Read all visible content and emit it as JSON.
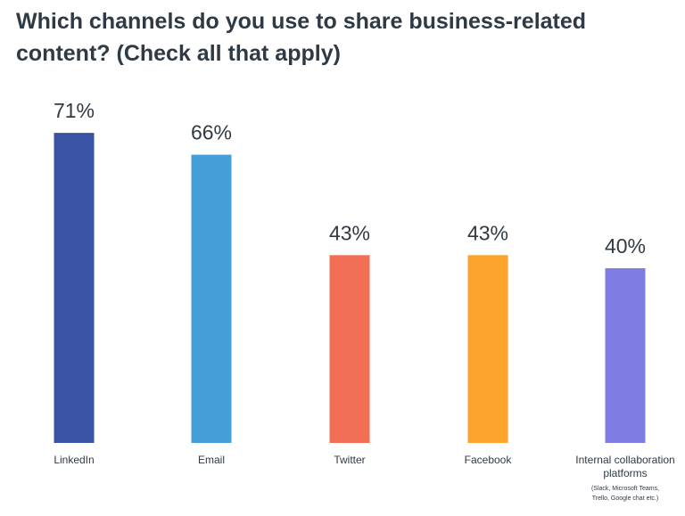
{
  "chart_data": {
    "type": "bar",
    "title": "Which channels do you use to share business-related content? (Check all that apply)",
    "categories": [
      "LinkedIn",
      "Email",
      "Twitter",
      "Facebook",
      "Internal collaboration platforms"
    ],
    "category_notes": [
      "",
      "",
      "",
      "",
      "(Slack, Microsoft Teams, Trello, Google chat etc.)"
    ],
    "values": [
      71,
      66,
      43,
      43,
      40
    ],
    "value_labels": [
      "71%",
      "66%",
      "43%",
      "43%",
      "40%"
    ],
    "bar_colors": [
      "#3a53a4",
      "#449fd8",
      "#f26f56",
      "#fda42e",
      "#7f7de3"
    ],
    "ylim": [
      0,
      100
    ],
    "xlabel": "",
    "ylabel": "",
    "grid": false,
    "legend": "none"
  }
}
